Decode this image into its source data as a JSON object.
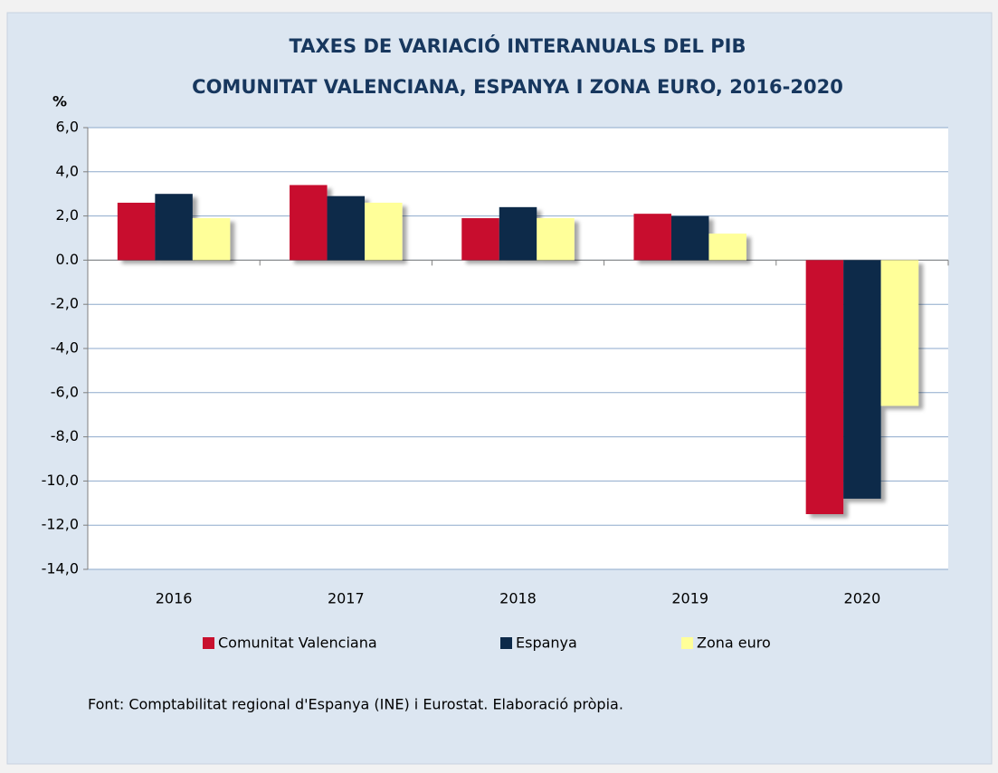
{
  "chart_data": {
    "type": "bar",
    "title": "TAXES DE VARIACIÓ INTERANUALS DEL PIB",
    "subtitle": "COMUNITAT VALENCIANA, ESPANYA I ZONA EURO, 2016-2020",
    "y_axis_label": "%",
    "source": "Font: Comptabilitat regional d'Espanya (INE) i Eurostat. Elaboració pròpia.",
    "categories": [
      "2016",
      "2017",
      "2018",
      "2019",
      "2020"
    ],
    "series": [
      {
        "name": "Comunitat Valenciana",
        "color": "#c8102e",
        "values": [
          2.6,
          3.4,
          1.9,
          2.1,
          -11.5
        ]
      },
      {
        "name": "Espanya",
        "color": "#0d2a4a",
        "values": [
          3.0,
          2.9,
          2.4,
          2.0,
          -10.8
        ]
      },
      {
        "name": "Zona euro",
        "color": "#ffff99",
        "values": [
          1.9,
          2.6,
          1.9,
          1.2,
          -6.6
        ]
      }
    ],
    "ylim": [
      -14,
      6
    ],
    "yticks": [
      {
        "value": -14,
        "label": "-14,0"
      },
      {
        "value": -12,
        "label": "-12,0"
      },
      {
        "value": -10,
        "label": "-10,0"
      },
      {
        "value": -8,
        "label": "-8,0"
      },
      {
        "value": -6,
        "label": "-6,0"
      },
      {
        "value": -4,
        "label": "-4,0"
      },
      {
        "value": -2,
        "label": "-2,0"
      },
      {
        "value": 0,
        "label": "0.0"
      },
      {
        "value": 2,
        "label": "2,0"
      },
      {
        "value": 4,
        "label": "4,0"
      },
      {
        "value": 6,
        "label": "6,0"
      }
    ],
    "grid": true,
    "legend": "bottom"
  }
}
